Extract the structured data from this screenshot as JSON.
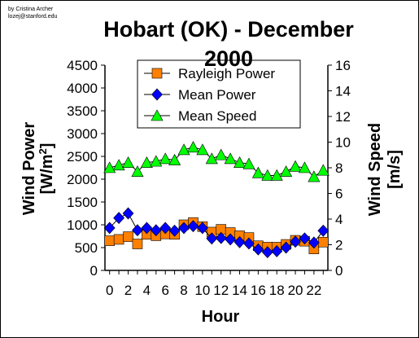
{
  "credits": {
    "line1": "by Cristina Archer",
    "line2": "lozej@stanford.edu"
  },
  "colors": {
    "rayleigh": "#ff8000",
    "mean_power": "#0000ff",
    "mean_speed": "#00ff00",
    "axes": "#000000",
    "background": "#ffffff"
  },
  "chart_data": {
    "type": "scatter",
    "title": "Hobart (OK) - December 2000",
    "xlabel": "Hour",
    "ylabel_left": "Wind Power [W/m²]",
    "ylabel_left_main": "Wind Power",
    "ylabel_left_unit_prefix": "[W/m",
    "ylabel_left_unit_sup": "2",
    "ylabel_left_unit_suffix": "]",
    "ylabel_right": "Wind Speed [m/s]",
    "ylabel_right_main": "Wind Speed",
    "ylabel_right_unit": "[m/s]",
    "xlim": [
      -0.5,
      23.5
    ],
    "ylim_left": [
      0,
      4500
    ],
    "ylim_right": [
      0,
      16
    ],
    "x_ticks": [
      0,
      2,
      4,
      6,
      8,
      10,
      12,
      14,
      16,
      18,
      20,
      22
    ],
    "y_ticks_left": [
      0,
      500,
      1000,
      1500,
      2000,
      2500,
      3000,
      3500,
      4000,
      4500
    ],
    "y_ticks_right": [
      0,
      2,
      4,
      6,
      8,
      10,
      12,
      14,
      16
    ],
    "grid": false,
    "legend_position": "top-center",
    "x": [
      0,
      1,
      2,
      3,
      4,
      5,
      6,
      7,
      8,
      9,
      10,
      11,
      12,
      13,
      14,
      15,
      16,
      17,
      18,
      19,
      20,
      21,
      22,
      23
    ],
    "series": [
      {
        "name": "Rayleigh Power",
        "axis": "left",
        "marker": "square",
        "color": "#ff8000",
        "values": [
          650,
          680,
          740,
          580,
          790,
          760,
          800,
          790,
          1000,
          1050,
          960,
          840,
          900,
          830,
          760,
          720,
          540,
          510,
          510,
          570,
          660,
          640,
          470,
          620
        ]
      },
      {
        "name": "Mean Power",
        "axis": "left",
        "marker": "diamond",
        "color": "#0000ff",
        "values": [
          930,
          1150,
          1250,
          880,
          930,
          880,
          930,
          870,
          930,
          970,
          930,
          700,
          710,
          680,
          620,
          590,
          460,
          400,
          420,
          500,
          630,
          700,
          610,
          870
        ]
      },
      {
        "name": "Mean Speed",
        "axis": "right",
        "marker": "triangle",
        "color": "#00ff00",
        "values": [
          8.0,
          8.2,
          8.4,
          7.7,
          8.4,
          8.5,
          8.7,
          8.6,
          9.4,
          9.6,
          9.4,
          8.7,
          9.0,
          8.7,
          8.4,
          8.3,
          7.6,
          7.4,
          7.4,
          7.7,
          8.1,
          8.0,
          7.3,
          7.8
        ]
      }
    ]
  }
}
